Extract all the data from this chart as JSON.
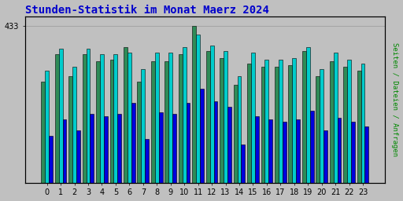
{
  "title": "Stunden-Statistik im Monat Maerz 2024",
  "title_color": "#0000cc",
  "background_color": "#c0c0c0",
  "plot_background": "#c0c0c0",
  "ylabel_right": "Seiten / Dateien / Anfragen",
  "x_labels": [
    "0",
    "1",
    "2",
    "3",
    "4",
    "5",
    "6",
    "7",
    "8",
    "9",
    "10",
    "11",
    "12",
    "13",
    "14",
    "15",
    "16",
    "17",
    "18",
    "19",
    "20",
    "21",
    "22",
    "23"
  ],
  "ytick_label": "433",
  "ymax": 460,
  "ytick_val": 433,
  "series": {
    "seiten": {
      "color": "#2e8b57",
      "values": [
        280,
        355,
        295,
        355,
        335,
        340,
        375,
        280,
        335,
        335,
        355,
        433,
        365,
        345,
        270,
        330,
        320,
        320,
        325,
        365,
        295,
        335,
        320,
        310
      ]
    },
    "dateien": {
      "color": "#00cccc",
      "values": [
        310,
        370,
        320,
        370,
        355,
        355,
        360,
        315,
        360,
        360,
        375,
        410,
        380,
        365,
        295,
        360,
        340,
        340,
        345,
        375,
        315,
        360,
        340,
        330
      ]
    },
    "anfragen": {
      "color": "#0000dd",
      "values": [
        130,
        175,
        145,
        190,
        185,
        190,
        220,
        120,
        195,
        190,
        220,
        260,
        225,
        210,
        105,
        185,
        175,
        168,
        175,
        200,
        145,
        180,
        168,
        155
      ]
    }
  },
  "bar_width": 0.28,
  "grid_color": "#999999",
  "border_color": "#000000",
  "title_fontsize": 10,
  "tick_fontsize": 7
}
